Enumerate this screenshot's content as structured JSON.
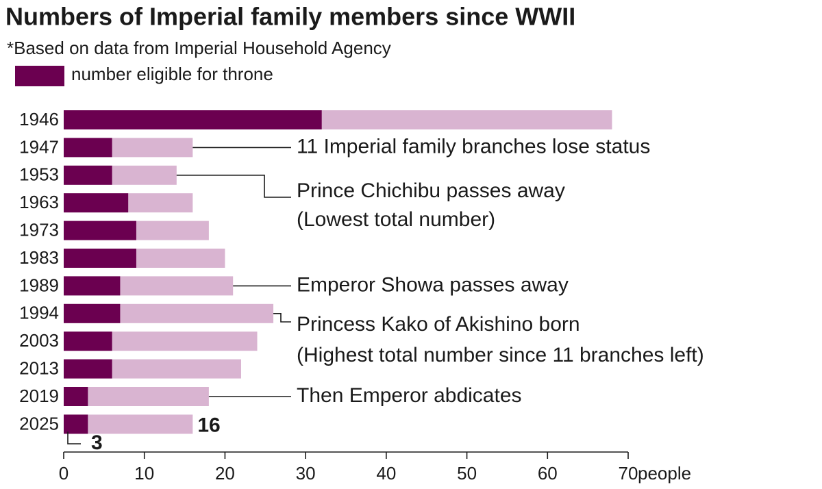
{
  "chart_data": {
    "type": "bar",
    "orientation": "horizontal",
    "title": "Numbers of Imperial family members since WWII",
    "subtitle": "*Based on data from Imperial Household Agency",
    "categories": [
      "1946",
      "1947",
      "1953",
      "1963",
      "1973",
      "1983",
      "1989",
      "1994",
      "2003",
      "2013",
      "2019",
      "2025"
    ],
    "series": [
      {
        "name": "number eligible for throne",
        "color": "#6b0050",
        "values": [
          32,
          6,
          6,
          8,
          9,
          9,
          7,
          7,
          6,
          6,
          3,
          3
        ]
      },
      {
        "color": "#d9b4d1",
        "values": [
          68,
          16,
          14,
          16,
          18,
          20,
          21,
          26,
          24,
          22,
          18,
          16
        ]
      }
    ],
    "xlim": [
      0,
      70
    ],
    "xticks": [
      0,
      10,
      20,
      30,
      40,
      50,
      60,
      70
    ],
    "xlabel": "people",
    "annotations": [
      "11 Imperial family branches lose status",
      "Prince Chichibu passes away",
      "(Lowest total number)",
      "Emperor Showa passes away",
      "Princess Kako of Akishino born",
      "(Highest total number since 11 branches left)",
      "Then Emperor abdicates"
    ]
  }
}
